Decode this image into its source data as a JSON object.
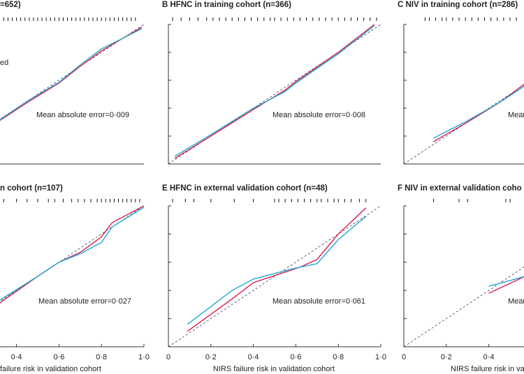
{
  "chart_data": [
    {
      "type": "line",
      "title": "=652)",
      "legend_text": "ed",
      "annotation": "Mean absolute error=0·009",
      "xlim": [
        0,
        1
      ],
      "ylim": [
        0,
        1
      ],
      "yticks": [
        0,
        0.2,
        0.4,
        0.6,
        0.8,
        1
      ],
      "rug": [
        0.34,
        0.36,
        0.38,
        0.4,
        0.42,
        0.44,
        0.46,
        0.48,
        0.5,
        0.52,
        0.54,
        0.56,
        0.58,
        0.6,
        0.62,
        0.64,
        0.66,
        0.68,
        0.7,
        0.72,
        0.74,
        0.76,
        0.78,
        0.8,
        0.82,
        0.84,
        0.86,
        0.88,
        0.9,
        0.92,
        0.94,
        0.96
      ],
      "series": [
        {
          "color": "#d6204f",
          "x": [
            0.32,
            0.45,
            0.6,
            0.7,
            0.8,
            0.9,
            0.99
          ],
          "values": [
            0.31,
            0.44,
            0.58,
            0.7,
            0.81,
            0.9,
            0.98
          ]
        },
        {
          "color": "#22a9d4",
          "x": [
            0.32,
            0.45,
            0.6,
            0.7,
            0.8,
            0.9,
            0.99
          ],
          "values": [
            0.315,
            0.45,
            0.585,
            0.71,
            0.825,
            0.9,
            0.97
          ]
        }
      ]
    },
    {
      "type": "line",
      "title": "B  HFNC in training cohort (n=366)",
      "annotation": "Mean absolute error=0·008",
      "xlim": [
        0,
        1
      ],
      "ylim": [
        0,
        1
      ],
      "yticks": [
        0,
        0.2,
        0.4,
        0.6,
        0.8,
        1
      ],
      "rug": [
        0.02,
        0.06,
        0.1,
        0.14,
        0.18,
        0.21,
        0.24,
        0.27,
        0.3,
        0.33,
        0.36,
        0.39,
        0.42,
        0.45,
        0.48,
        0.5,
        0.53,
        0.56,
        0.59,
        0.62,
        0.65,
        0.68,
        0.71,
        0.74,
        0.77,
        0.8,
        0.83,
        0.86,
        0.89,
        0.92,
        0.95,
        0.98
      ],
      "series": [
        {
          "color": "#d6204f",
          "x": [
            0.03,
            0.2,
            0.4,
            0.55,
            0.6,
            0.8,
            0.97
          ],
          "values": [
            0.04,
            0.2,
            0.39,
            0.53,
            0.59,
            0.8,
            1
          ]
        },
        {
          "color": "#22a9d4",
          "x": [
            0.03,
            0.2,
            0.4,
            0.55,
            0.6,
            0.8,
            0.97
          ],
          "values": [
            0.055,
            0.21,
            0.4,
            0.52,
            0.58,
            0.79,
            0.99
          ]
        }
      ]
    },
    {
      "type": "line",
      "title": "C  NIV in training cohort (n=286)",
      "annotation": "Mean",
      "xlim": [
        0,
        1
      ],
      "ylim": [
        0,
        1
      ],
      "yticks": [
        0,
        0.2,
        0.4,
        0.6,
        0.8,
        1
      ],
      "rug": [
        0.1,
        0.12,
        0.15,
        0.18,
        0.2,
        0.23,
        0.26,
        0.29,
        0.32,
        0.35,
        0.38,
        0.41,
        0.44,
        0.47,
        0.5,
        0.53
      ],
      "series": [
        {
          "color": "#d6204f",
          "x": [
            0.14,
            0.3,
            0.45,
            0.57
          ],
          "values": [
            0.16,
            0.3,
            0.44,
            0.575
          ]
        },
        {
          "color": "#22a9d4",
          "x": [
            0.14,
            0.3,
            0.45,
            0.57
          ],
          "values": [
            0.185,
            0.31,
            0.44,
            0.56
          ]
        }
      ]
    },
    {
      "type": "line",
      "title": "n cohort (n=107)",
      "annotation": "Mean absolute error=0·027",
      "xlim": [
        0,
        1
      ],
      "ylim": [
        0,
        1
      ],
      "yticks": [
        0,
        0.2,
        0.4,
        0.6,
        0.8,
        1
      ],
      "xticks": [
        {
          "value": 0.4,
          "label": "0·4"
        },
        {
          "value": 0.6,
          "label": "0·6"
        },
        {
          "value": 0.8,
          "label": "0·8"
        },
        {
          "value": 1,
          "label": "1·0"
        }
      ],
      "xlabel": "failure risk in validation cohort",
      "rug": [
        0.34,
        0.4,
        0.45,
        0.5,
        0.55,
        0.58,
        0.62,
        0.66,
        0.69,
        0.72,
        0.75,
        0.78,
        0.8,
        0.82,
        0.84,
        0.86,
        0.88,
        0.9,
        0.92,
        0.94,
        0.96,
        0.98
      ],
      "series": [
        {
          "color": "#d6204f",
          "x": [
            0.32,
            0.5,
            0.6,
            0.7,
            0.8,
            0.85,
            1
          ],
          "values": [
            0.31,
            0.5,
            0.6,
            0.67,
            0.78,
            0.88,
            1
          ]
        },
        {
          "color": "#22a9d4",
          "x": [
            0.32,
            0.5,
            0.6,
            0.7,
            0.8,
            0.85,
            1
          ],
          "values": [
            0.33,
            0.5,
            0.6,
            0.66,
            0.74,
            0.85,
            0.99
          ]
        }
      ]
    },
    {
      "type": "line",
      "title": "E  HFNC in external validation cohort (n=48)",
      "annotation": "Mean absolute error=0·061",
      "xlim": [
        0,
        1
      ],
      "ylim": [
        0,
        1
      ],
      "yticks": [
        0,
        0.2,
        0.4,
        0.6,
        0.8,
        1
      ],
      "xticks": [
        0,
        {
          "value": 0.2,
          "label": "0·2"
        },
        {
          "value": 0.4,
          "label": "0·4"
        },
        {
          "value": 0.6,
          "label": "0·6"
        },
        {
          "value": 0.8,
          "label": "0·8"
        },
        {
          "value": 1,
          "label": "1·0"
        }
      ],
      "xlabel": "NIRS failure risk in validation cohort",
      "rug": [
        0.02,
        0.08,
        0.12,
        0.2,
        0.31,
        0.4,
        0.5,
        0.52,
        0.55,
        0.58,
        0.61,
        0.64,
        0.67,
        0.7,
        0.72,
        0.75,
        0.78,
        0.8,
        0.83,
        0.86,
        0.9,
        0.93
      ],
      "series": [
        {
          "color": "#d6204f",
          "x": [
            0.09,
            0.3,
            0.4,
            0.55,
            0.62,
            0.7,
            0.8,
            0.93
          ],
          "values": [
            0.11,
            0.34,
            0.455,
            0.53,
            0.565,
            0.62,
            0.8,
            0.985
          ]
        },
        {
          "color": "#22a9d4",
          "x": [
            0.09,
            0.3,
            0.4,
            0.55,
            0.62,
            0.7,
            0.8,
            0.93
          ],
          "values": [
            0.16,
            0.4,
            0.48,
            0.54,
            0.565,
            0.59,
            0.76,
            0.925
          ]
        }
      ]
    },
    {
      "type": "line",
      "title": "F  NIV in external validation coho",
      "annotation": "Mean",
      "xlim": [
        0,
        1
      ],
      "ylim": [
        0,
        1
      ],
      "yticks": [
        0,
        0.2,
        0.4,
        0.6,
        0.8,
        1
      ],
      "xticks": [
        0,
        {
          "value": 0.2,
          "label": "0·2"
        },
        {
          "value": 0.4,
          "label": "0·4"
        }
      ],
      "xlabel": "NIRS failure risk in validation",
      "rug": [
        0.14,
        0.26,
        0.3,
        0.48,
        0.5
      ],
      "series": [
        {
          "color": "#d6204f",
          "x": [
            0.4,
            0.5,
            0.57
          ],
          "values": [
            0.38,
            0.45,
            0.5
          ]
        },
        {
          "color": "#22a9d4",
          "x": [
            0.4,
            0.5,
            0.57
          ],
          "values": [
            0.43,
            0.47,
            0.5
          ]
        }
      ]
    }
  ]
}
